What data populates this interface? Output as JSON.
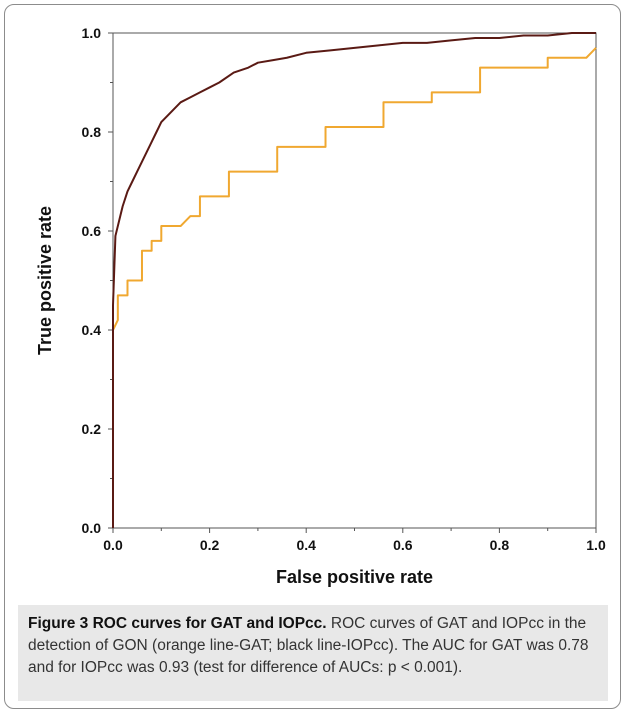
{
  "chart_data": {
    "type": "line",
    "xlabel": "False positive rate",
    "ylabel": "True positive rate",
    "xlim": [
      0.0,
      1.0
    ],
    "ylim": [
      0.0,
      1.0
    ],
    "xticks": [
      "0.0",
      "0.2",
      "0.4",
      "0.6",
      "0.8",
      "1.0"
    ],
    "yticks": [
      "0.0",
      "0.2",
      "0.4",
      "0.6",
      "0.8",
      "1.0"
    ],
    "grid": false,
    "legend": "none",
    "series": [
      {
        "color": "#5a1a14",
        "x": [
          0.0,
          0.0,
          0.005,
          0.01,
          0.015,
          0.02,
          0.03,
          0.04,
          0.05,
          0.06,
          0.07,
          0.08,
          0.09,
          0.1,
          0.12,
          0.14,
          0.16,
          0.18,
          0.2,
          0.22,
          0.25,
          0.28,
          0.3,
          0.33,
          0.36,
          0.4,
          0.45,
          0.5,
          0.55,
          0.6,
          0.65,
          0.7,
          0.75,
          0.8,
          0.85,
          0.9,
          0.95,
          1.0
        ],
        "y": [
          0.0,
          0.45,
          0.59,
          0.61,
          0.63,
          0.65,
          0.68,
          0.7,
          0.72,
          0.74,
          0.76,
          0.78,
          0.8,
          0.82,
          0.84,
          0.86,
          0.87,
          0.88,
          0.89,
          0.9,
          0.92,
          0.93,
          0.94,
          0.945,
          0.95,
          0.96,
          0.965,
          0.97,
          0.975,
          0.98,
          0.98,
          0.985,
          0.99,
          0.99,
          0.995,
          0.995,
          1.0,
          1.0
        ]
      },
      {
        "color": "#f0a830",
        "x": [
          0.0,
          0.0,
          0.01,
          0.01,
          0.03,
          0.03,
          0.06,
          0.06,
          0.08,
          0.08,
          0.1,
          0.1,
          0.12,
          0.14,
          0.16,
          0.18,
          0.18,
          0.24,
          0.24,
          0.34,
          0.34,
          0.44,
          0.44,
          0.56,
          0.56,
          0.66,
          0.66,
          0.76,
          0.76,
          0.9,
          0.9,
          0.98,
          0.99,
          1.0
        ],
        "y": [
          0.0,
          0.4,
          0.42,
          0.47,
          0.47,
          0.5,
          0.5,
          0.56,
          0.56,
          0.58,
          0.58,
          0.61,
          0.61,
          0.61,
          0.63,
          0.63,
          0.67,
          0.67,
          0.72,
          0.72,
          0.77,
          0.77,
          0.81,
          0.81,
          0.86,
          0.86,
          0.88,
          0.88,
          0.93,
          0.93,
          0.95,
          0.95,
          0.96,
          0.97
        ]
      }
    ]
  },
  "caption": {
    "figure_title": "Figure 3 ROC curves for GAT and IOPcc.",
    "text": " ROC curves of GAT and IOPcc in the detection of GON (orange line-GAT; black line-IOPcc). The AUC for GAT was 0.78 and for IOPcc was 0.93 (test for difference of AUCs: p < 0.001)."
  }
}
